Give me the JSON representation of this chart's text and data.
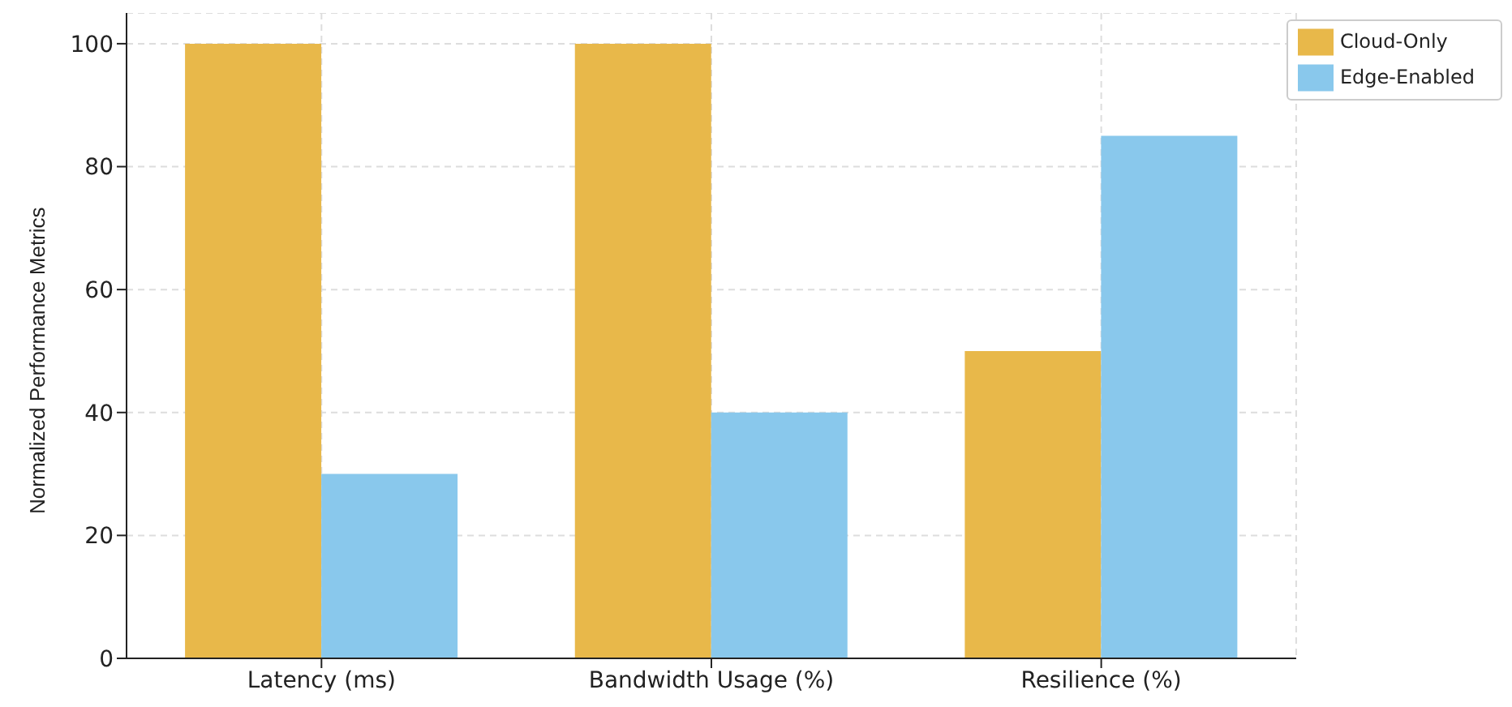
{
  "chart_data": {
    "type": "bar",
    "ylabel": "Normalized Performance Metrics",
    "categories": [
      "Latency (ms)",
      "Bandwidth Usage (%)",
      "Resilience (%)"
    ],
    "series": [
      {
        "name": "Cloud-Only",
        "color": "#e8b84a",
        "values": [
          100,
          100,
          50
        ]
      },
      {
        "name": "Edge-Enabled",
        "color": "#89c8ec",
        "values": [
          30,
          40,
          85
        ]
      }
    ],
    "ylim": [
      0,
      105
    ],
    "yticks": [
      0,
      20,
      40,
      60,
      80,
      100
    ],
    "grid": true,
    "legend": "top right"
  }
}
